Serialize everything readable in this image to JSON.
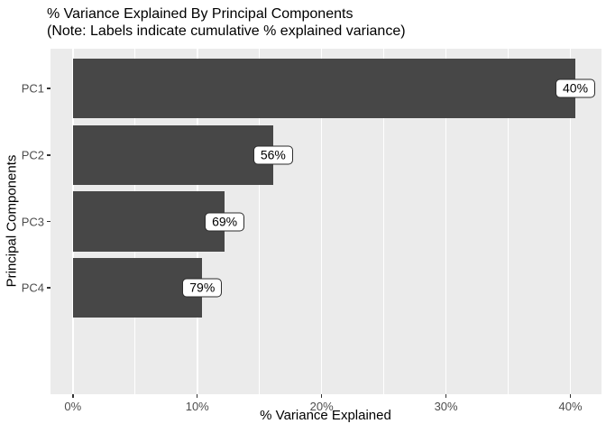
{
  "chart_data": {
    "type": "bar",
    "orientation": "horizontal",
    "title": "% Variance Explained By Principal Components",
    "subtitle": "(Note: Labels indicate cumulative % explained variance)",
    "xlabel": "% Variance Explained",
    "ylabel": "Principal Components",
    "categories": [
      "PC1",
      "PC2",
      "PC3",
      "PC4"
    ],
    "values": [
      40.4,
      16.1,
      12.2,
      10.4
    ],
    "cumulative_labels": [
      "40%",
      "56%",
      "69%",
      "79%"
    ],
    "x_ticks": [
      {
        "value": 0,
        "label": "0%"
      },
      {
        "value": 10,
        "label": "10%"
      },
      {
        "value": 20,
        "label": "20%"
      },
      {
        "value": 30,
        "label": "30%"
      },
      {
        "value": 40,
        "label": "40%"
      }
    ],
    "x_minor_gridlines": [
      5,
      15,
      25,
      35
    ],
    "xlim": [
      -1.8,
      42.5
    ],
    "grid": true,
    "legend": false,
    "colors": {
      "bar_fill": "#474747",
      "panel_bg": "#EBEBEB",
      "gridline": "#FFFFFF",
      "tick_text": "#4D4D4D",
      "title_text": "#000000",
      "tick_mark": "#333333",
      "label_box_bg": "#FFFFFF",
      "label_box_border": "#2B2B2B"
    }
  }
}
